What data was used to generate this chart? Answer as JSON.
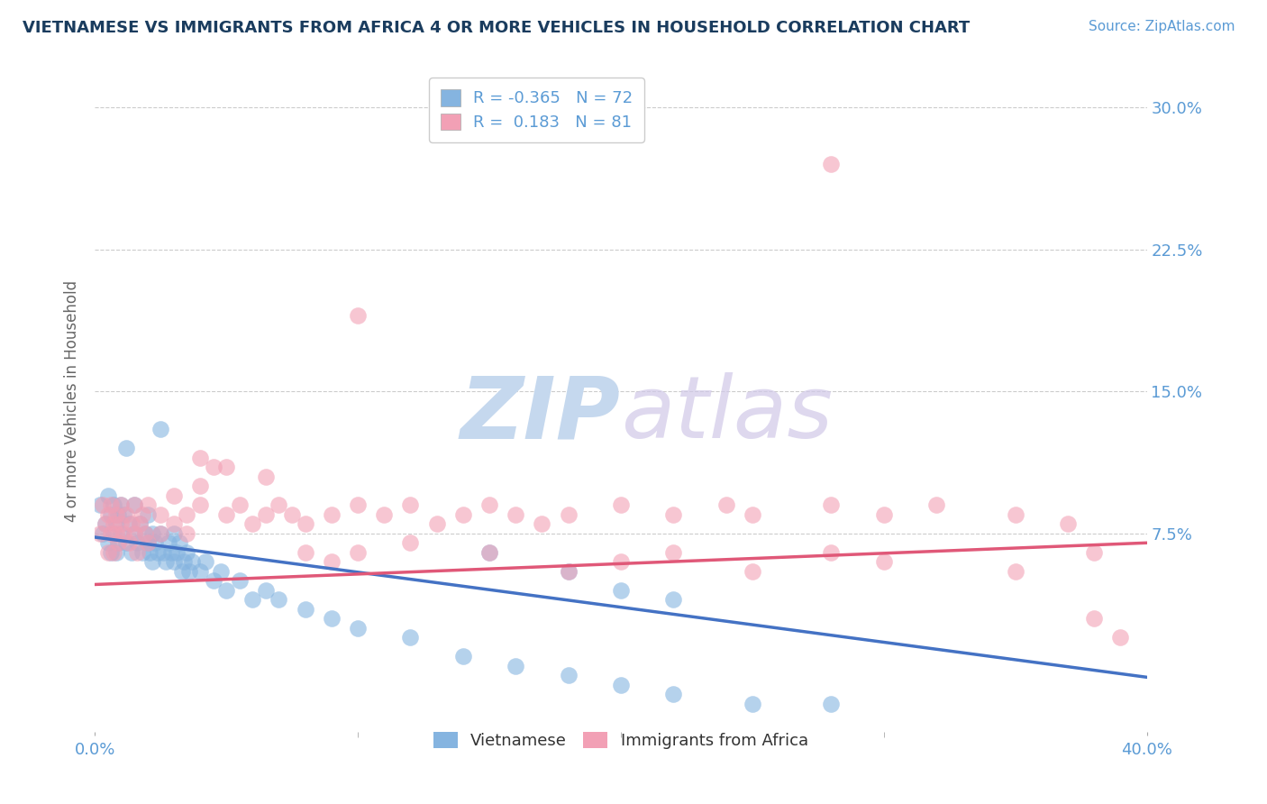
{
  "title": "VIETNAMESE VS IMMIGRANTS FROM AFRICA 4 OR MORE VEHICLES IN HOUSEHOLD CORRELATION CHART",
  "source_text": "Source: ZipAtlas.com",
  "ylabel": "4 or more Vehicles in Household",
  "xlim": [
    0.0,
    0.4
  ],
  "ylim": [
    -0.03,
    0.32
  ],
  "ytick_labels": [
    "7.5%",
    "15.0%",
    "22.5%",
    "30.0%"
  ],
  "ytick_values": [
    0.075,
    0.15,
    0.225,
    0.3
  ],
  "blue_color": "#85b4e0",
  "pink_color": "#f2a0b5",
  "blue_line_color": "#4472c4",
  "pink_line_color": "#e05878",
  "title_color": "#1a3c5e",
  "source_color": "#5b9bd5",
  "axis_label_color": "#666666",
  "tick_color": "#5b9bd5",
  "watermark_color": "#d0dff0",
  "r_blue": -0.365,
  "n_blue": 72,
  "r_pink": 0.183,
  "n_pink": 81,
  "blue_trend": [
    0.073,
    -0.185
  ],
  "pink_trend": [
    0.048,
    0.055
  ],
  "blue_scatter": [
    [
      0.002,
      0.09
    ],
    [
      0.003,
      0.075
    ],
    [
      0.004,
      0.08
    ],
    [
      0.005,
      0.095
    ],
    [
      0.005,
      0.07
    ],
    [
      0.006,
      0.085
    ],
    [
      0.006,
      0.065
    ],
    [
      0.007,
      0.09
    ],
    [
      0.007,
      0.075
    ],
    [
      0.008,
      0.08
    ],
    [
      0.008,
      0.065
    ],
    [
      0.009,
      0.085
    ],
    [
      0.009,
      0.07
    ],
    [
      0.01,
      0.09
    ],
    [
      0.01,
      0.075
    ],
    [
      0.011,
      0.085
    ],
    [
      0.012,
      0.12
    ],
    [
      0.012,
      0.07
    ],
    [
      0.013,
      0.08
    ],
    [
      0.014,
      0.065
    ],
    [
      0.015,
      0.075
    ],
    [
      0.015,
      0.09
    ],
    [
      0.016,
      0.07
    ],
    [
      0.017,
      0.08
    ],
    [
      0.018,
      0.065
    ],
    [
      0.019,
      0.075
    ],
    [
      0.02,
      0.085
    ],
    [
      0.02,
      0.07
    ],
    [
      0.021,
      0.065
    ],
    [
      0.022,
      0.075
    ],
    [
      0.022,
      0.06
    ],
    [
      0.023,
      0.07
    ],
    [
      0.024,
      0.065
    ],
    [
      0.025,
      0.13
    ],
    [
      0.025,
      0.075
    ],
    [
      0.026,
      0.065
    ],
    [
      0.027,
      0.06
    ],
    [
      0.028,
      0.07
    ],
    [
      0.029,
      0.065
    ],
    [
      0.03,
      0.075
    ],
    [
      0.03,
      0.06
    ],
    [
      0.031,
      0.065
    ],
    [
      0.032,
      0.07
    ],
    [
      0.033,
      0.055
    ],
    [
      0.034,
      0.06
    ],
    [
      0.035,
      0.065
    ],
    [
      0.036,
      0.055
    ],
    [
      0.037,
      0.06
    ],
    [
      0.04,
      0.055
    ],
    [
      0.042,
      0.06
    ],
    [
      0.045,
      0.05
    ],
    [
      0.048,
      0.055
    ],
    [
      0.05,
      0.045
    ],
    [
      0.055,
      0.05
    ],
    [
      0.06,
      0.04
    ],
    [
      0.065,
      0.045
    ],
    [
      0.07,
      0.04
    ],
    [
      0.08,
      0.035
    ],
    [
      0.09,
      0.03
    ],
    [
      0.1,
      0.025
    ],
    [
      0.12,
      0.02
    ],
    [
      0.14,
      0.01
    ],
    [
      0.16,
      0.005
    ],
    [
      0.18,
      0.0
    ],
    [
      0.2,
      -0.005
    ],
    [
      0.22,
      -0.01
    ],
    [
      0.25,
      -0.015
    ],
    [
      0.28,
      -0.015
    ],
    [
      0.15,
      0.065
    ],
    [
      0.18,
      0.055
    ],
    [
      0.2,
      0.045
    ],
    [
      0.22,
      0.04
    ]
  ],
  "pink_scatter": [
    [
      0.002,
      0.075
    ],
    [
      0.003,
      0.09
    ],
    [
      0.004,
      0.08
    ],
    [
      0.005,
      0.085
    ],
    [
      0.005,
      0.065
    ],
    [
      0.006,
      0.075
    ],
    [
      0.006,
      0.09
    ],
    [
      0.007,
      0.08
    ],
    [
      0.007,
      0.065
    ],
    [
      0.008,
      0.085
    ],
    [
      0.008,
      0.075
    ],
    [
      0.009,
      0.07
    ],
    [
      0.01,
      0.08
    ],
    [
      0.01,
      0.09
    ],
    [
      0.011,
      0.075
    ],
    [
      0.012,
      0.085
    ],
    [
      0.013,
      0.07
    ],
    [
      0.014,
      0.08
    ],
    [
      0.015,
      0.09
    ],
    [
      0.015,
      0.075
    ],
    [
      0.016,
      0.065
    ],
    [
      0.017,
      0.08
    ],
    [
      0.018,
      0.085
    ],
    [
      0.019,
      0.075
    ],
    [
      0.02,
      0.09
    ],
    [
      0.02,
      0.07
    ],
    [
      0.025,
      0.085
    ],
    [
      0.025,
      0.075
    ],
    [
      0.03,
      0.095
    ],
    [
      0.03,
      0.08
    ],
    [
      0.035,
      0.085
    ],
    [
      0.035,
      0.075
    ],
    [
      0.04,
      0.09
    ],
    [
      0.04,
      0.1
    ],
    [
      0.045,
      0.11
    ],
    [
      0.05,
      0.085
    ],
    [
      0.055,
      0.09
    ],
    [
      0.06,
      0.08
    ],
    [
      0.065,
      0.085
    ],
    [
      0.07,
      0.09
    ],
    [
      0.075,
      0.085
    ],
    [
      0.08,
      0.08
    ],
    [
      0.09,
      0.085
    ],
    [
      0.1,
      0.09
    ],
    [
      0.11,
      0.085
    ],
    [
      0.12,
      0.09
    ],
    [
      0.13,
      0.08
    ],
    [
      0.14,
      0.085
    ],
    [
      0.15,
      0.09
    ],
    [
      0.16,
      0.085
    ],
    [
      0.17,
      0.08
    ],
    [
      0.18,
      0.085
    ],
    [
      0.2,
      0.09
    ],
    [
      0.22,
      0.085
    ],
    [
      0.24,
      0.09
    ],
    [
      0.25,
      0.085
    ],
    [
      0.28,
      0.09
    ],
    [
      0.3,
      0.085
    ],
    [
      0.32,
      0.09
    ],
    [
      0.35,
      0.085
    ],
    [
      0.37,
      0.08
    ],
    [
      0.38,
      0.03
    ],
    [
      0.39,
      0.02
    ],
    [
      0.1,
      0.19
    ],
    [
      0.28,
      0.27
    ],
    [
      0.04,
      0.115
    ],
    [
      0.05,
      0.11
    ],
    [
      0.065,
      0.105
    ],
    [
      0.08,
      0.065
    ],
    [
      0.09,
      0.06
    ],
    [
      0.1,
      0.065
    ],
    [
      0.12,
      0.07
    ],
    [
      0.15,
      0.065
    ],
    [
      0.18,
      0.055
    ],
    [
      0.2,
      0.06
    ],
    [
      0.22,
      0.065
    ],
    [
      0.25,
      0.055
    ],
    [
      0.28,
      0.065
    ],
    [
      0.3,
      0.06
    ],
    [
      0.35,
      0.055
    ],
    [
      0.38,
      0.065
    ]
  ]
}
